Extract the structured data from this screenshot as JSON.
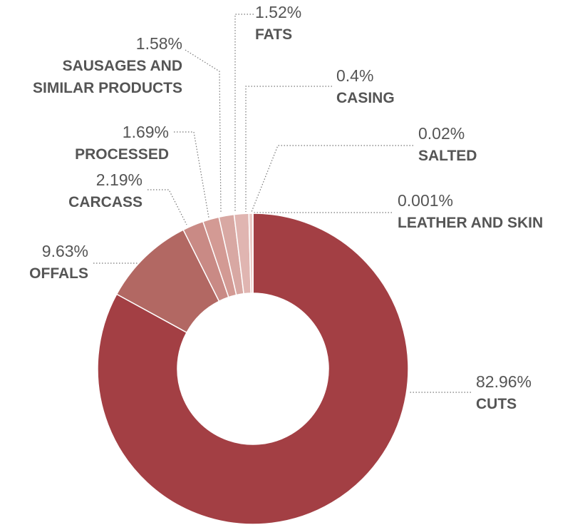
{
  "chart_data": {
    "type": "donut",
    "categories": [
      "CUTS",
      "OFFALS",
      "CARCASS",
      "PROCESSED",
      "SAUSAGES AND SIMILAR PRODUCTS",
      "FATS",
      "CASING",
      "SALTED",
      "LEATHER AND SKIN"
    ],
    "values": [
      82.96,
      9.63,
      2.19,
      1.69,
      1.58,
      1.52,
      0.4,
      0.02,
      0.001
    ],
    "value_labels": [
      "82.96%",
      "9.63%",
      "2.19%",
      "1.69%",
      "1.58%",
      "1.52%",
      "0.4%",
      "0.02%",
      "0.001%"
    ],
    "colors": [
      "#a33f44",
      "#b26863",
      "#c98a85",
      "#d39a94",
      "#d8a8a3",
      "#e0b5b1",
      "#ecc9c6",
      "#f5dcda",
      "#fae8e6"
    ]
  }
}
